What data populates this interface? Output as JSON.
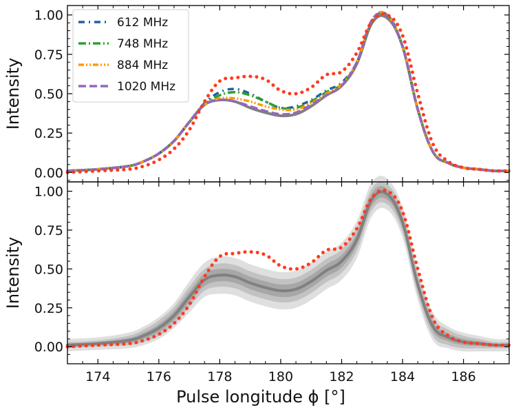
{
  "chart_data": [
    {
      "type": "line",
      "panel": "top",
      "xlabel": "",
      "ylabel": "Intensity",
      "xlim": [
        173.0,
        187.5
      ],
      "ylim": [
        -0.06,
        1.06
      ],
      "yticks": [
        "0.00",
        "0.25",
        "0.50",
        "0.75",
        "1.00"
      ],
      "xticks": [],
      "legend_position": "upper-left",
      "series": [
        {
          "name": "612 MHz",
          "color": "#1f5fa6",
          "style": "dash-dot-sparse",
          "x": [
            173.0,
            174.0,
            175.0,
            175.5,
            176.0,
            176.5,
            177.0,
            177.5,
            178.0,
            178.5,
            179.0,
            179.5,
            180.0,
            180.5,
            181.0,
            181.5,
            182.0,
            182.5,
            183.0,
            183.5,
            184.0,
            184.5,
            185.0,
            185.5,
            186.0,
            186.5,
            187.0,
            187.5
          ],
          "y": [
            0.01,
            0.02,
            0.04,
            0.07,
            0.12,
            0.2,
            0.32,
            0.44,
            0.51,
            0.53,
            0.5,
            0.45,
            0.41,
            0.42,
            0.46,
            0.52,
            0.57,
            0.7,
            0.96,
            1.0,
            0.8,
            0.4,
            0.13,
            0.06,
            0.03,
            0.02,
            0.01,
            0.01
          ]
        },
        {
          "name": "748 MHz",
          "color": "#2ca02c",
          "style": "dash-dot",
          "x": [
            173.0,
            174.0,
            175.0,
            175.5,
            176.0,
            176.5,
            177.0,
            177.5,
            178.0,
            178.5,
            179.0,
            179.5,
            180.0,
            180.5,
            181.0,
            181.5,
            182.0,
            182.5,
            183.0,
            183.5,
            184.0,
            184.5,
            185.0,
            185.5,
            186.0,
            186.5,
            187.0,
            187.5
          ],
          "y": [
            0.01,
            0.02,
            0.04,
            0.07,
            0.12,
            0.2,
            0.32,
            0.43,
            0.49,
            0.51,
            0.49,
            0.45,
            0.41,
            0.41,
            0.45,
            0.51,
            0.56,
            0.7,
            0.96,
            1.0,
            0.8,
            0.4,
            0.13,
            0.06,
            0.03,
            0.02,
            0.01,
            0.01
          ]
        },
        {
          "name": "884 MHz",
          "color": "#ff9900",
          "style": "dash-dot-dot",
          "x": [
            173.0,
            174.0,
            175.0,
            175.5,
            176.0,
            176.5,
            177.0,
            177.5,
            178.0,
            178.5,
            179.0,
            179.5,
            180.0,
            180.5,
            181.0,
            181.5,
            182.0,
            182.5,
            183.0,
            183.5,
            184.0,
            184.5,
            185.0,
            185.5,
            186.0,
            186.5,
            187.0,
            187.5
          ],
          "y": [
            0.01,
            0.02,
            0.04,
            0.07,
            0.12,
            0.2,
            0.32,
            0.43,
            0.47,
            0.47,
            0.45,
            0.42,
            0.4,
            0.4,
            0.44,
            0.5,
            0.56,
            0.7,
            0.97,
            1.0,
            0.8,
            0.4,
            0.13,
            0.06,
            0.03,
            0.02,
            0.01,
            0.01
          ]
        },
        {
          "name": "1020 MHz",
          "color": "#9467bd",
          "style": "dashed",
          "x": [
            173.0,
            174.0,
            175.0,
            175.5,
            176.0,
            176.5,
            177.0,
            177.5,
            178.0,
            178.5,
            179.0,
            179.5,
            180.0,
            180.5,
            181.0,
            181.5,
            182.0,
            182.5,
            183.0,
            183.5,
            184.0,
            184.5,
            185.0,
            185.5,
            186.0,
            186.5,
            187.0,
            187.5
          ],
          "y": [
            0.01,
            0.02,
            0.04,
            0.07,
            0.12,
            0.2,
            0.32,
            0.43,
            0.46,
            0.45,
            0.42,
            0.39,
            0.37,
            0.38,
            0.43,
            0.49,
            0.55,
            0.7,
            0.97,
            0.99,
            0.8,
            0.4,
            0.13,
            0.06,
            0.03,
            0.02,
            0.01,
            0.01
          ]
        },
        {
          "color": "#808080",
          "style": "solid-thick",
          "x": [
            173.0,
            174.0,
            175.0,
            175.5,
            176.0,
            176.5,
            177.0,
            177.5,
            178.0,
            178.5,
            179.0,
            179.5,
            180.0,
            180.5,
            181.0,
            181.5,
            182.0,
            182.5,
            183.0,
            183.5,
            184.0,
            184.5,
            185.0,
            185.5,
            186.0,
            186.5,
            187.0,
            187.5
          ],
          "y": [
            0.01,
            0.02,
            0.04,
            0.07,
            0.12,
            0.2,
            0.32,
            0.43,
            0.46,
            0.45,
            0.41,
            0.38,
            0.36,
            0.37,
            0.42,
            0.49,
            0.55,
            0.69,
            0.95,
            0.98,
            0.8,
            0.4,
            0.13,
            0.06,
            0.03,
            0.02,
            0.01,
            0.01
          ]
        },
        {
          "color": "#ff3b1f",
          "style": "dotted",
          "x": [
            173.0,
            174.0,
            175.0,
            175.5,
            176.0,
            176.5,
            177.0,
            177.5,
            178.0,
            178.5,
            179.0,
            179.5,
            180.0,
            180.5,
            181.0,
            181.5,
            182.0,
            182.5,
            183.0,
            183.5,
            184.0,
            184.5,
            185.0,
            185.5,
            186.0,
            186.5,
            187.0,
            187.5
          ],
          "y": [
            0.0,
            0.01,
            0.02,
            0.04,
            0.08,
            0.15,
            0.27,
            0.45,
            0.58,
            0.6,
            0.61,
            0.59,
            0.52,
            0.5,
            0.54,
            0.62,
            0.64,
            0.76,
            0.96,
            1.0,
            0.87,
            0.5,
            0.18,
            0.07,
            0.03,
            0.02,
            0.01,
            0.01
          ]
        }
      ]
    },
    {
      "type": "line",
      "panel": "bottom",
      "xlabel": "Pulse longitude ϕ [°]",
      "ylabel": "Intensity",
      "xlim": [
        173.0,
        187.5
      ],
      "ylim": [
        -0.11,
        1.06
      ],
      "yticks": [
        "0.00",
        "0.25",
        "0.50",
        "0.75",
        "1.00"
      ],
      "xticks": [
        "174",
        "176",
        "178",
        "180",
        "182",
        "184",
        "186"
      ],
      "bands": [
        {
          "color": "#b8b8b8",
          "opacity": 0.45,
          "half_width": [
            0.04,
            0.04,
            0.05,
            0.06,
            0.07,
            0.08,
            0.1,
            0.11,
            0.12,
            0.12,
            0.12,
            0.12,
            0.12,
            0.12,
            0.12,
            0.12,
            0.12,
            0.12,
            0.11,
            0.1,
            0.1,
            0.1,
            0.09,
            0.07,
            0.06,
            0.05,
            0.04,
            0.04
          ]
        },
        {
          "color": "#a0a0a0",
          "opacity": 0.45,
          "half_width": [
            0.02,
            0.02,
            0.03,
            0.04,
            0.05,
            0.055,
            0.065,
            0.07,
            0.075,
            0.075,
            0.075,
            0.075,
            0.075,
            0.075,
            0.075,
            0.075,
            0.075,
            0.075,
            0.07,
            0.065,
            0.065,
            0.065,
            0.06,
            0.05,
            0.04,
            0.03,
            0.02,
            0.02
          ]
        },
        {
          "color": "#888888",
          "opacity": 0.45,
          "half_width": [
            0.01,
            0.01,
            0.015,
            0.02,
            0.025,
            0.03,
            0.035,
            0.04,
            0.04,
            0.04,
            0.04,
            0.04,
            0.04,
            0.04,
            0.04,
            0.04,
            0.04,
            0.04,
            0.04,
            0.035,
            0.035,
            0.035,
            0.03,
            0.025,
            0.02,
            0.015,
            0.01,
            0.01
          ]
        }
      ],
      "series": [
        {
          "color": "#808080",
          "style": "solid-thick",
          "x": [
            173.0,
            174.0,
            175.0,
            175.5,
            176.0,
            176.5,
            177.0,
            177.5,
            178.0,
            178.5,
            179.0,
            179.5,
            180.0,
            180.5,
            181.0,
            181.5,
            182.0,
            182.5,
            183.0,
            183.5,
            184.0,
            184.5,
            185.0,
            185.5,
            186.0,
            186.5,
            187.0,
            187.5
          ],
          "y": [
            0.01,
            0.02,
            0.04,
            0.07,
            0.12,
            0.2,
            0.32,
            0.43,
            0.46,
            0.45,
            0.41,
            0.38,
            0.36,
            0.37,
            0.42,
            0.49,
            0.55,
            0.69,
            0.95,
            0.98,
            0.8,
            0.4,
            0.13,
            0.06,
            0.03,
            0.02,
            0.01,
            0.01
          ]
        },
        {
          "color": "#ff3b1f",
          "style": "dotted",
          "x": [
            173.0,
            174.0,
            175.0,
            175.5,
            176.0,
            176.5,
            177.0,
            177.5,
            178.0,
            178.5,
            179.0,
            179.5,
            180.0,
            180.5,
            181.0,
            181.5,
            182.0,
            182.5,
            183.0,
            183.5,
            184.0,
            184.5,
            185.0,
            185.5,
            186.0,
            186.5,
            187.0,
            187.5
          ],
          "y": [
            0.0,
            0.01,
            0.02,
            0.04,
            0.08,
            0.15,
            0.27,
            0.45,
            0.58,
            0.6,
            0.61,
            0.59,
            0.52,
            0.5,
            0.54,
            0.62,
            0.64,
            0.76,
            0.96,
            1.0,
            0.87,
            0.5,
            0.18,
            0.07,
            0.03,
            0.02,
            0.01,
            0.01
          ]
        }
      ]
    }
  ]
}
